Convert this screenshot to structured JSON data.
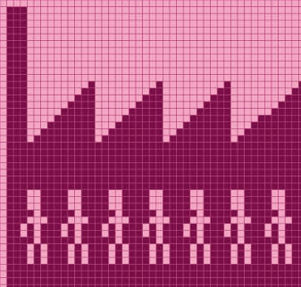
{
  "colors": {
    "light": "#f2a6c2",
    "dark": "#7a0f48",
    "grid_line": "#b9467c"
  },
  "pattern": {
    "name": "knitting-chart",
    "motifs": {
      "factory_roof_count": 4,
      "figure_count": 7
    }
  }
}
